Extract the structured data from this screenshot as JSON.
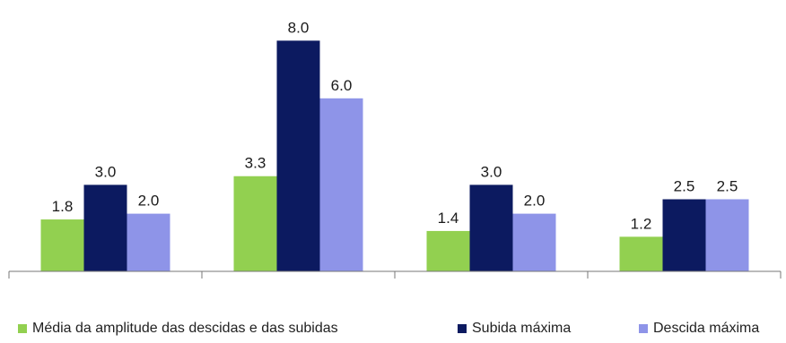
{
  "chart_data": {
    "type": "bar",
    "categories": [
      "",
      "",
      "",
      ""
    ],
    "series": [
      {
        "name": "Média da amplitude das descidas e das subidas",
        "color": "#92d050",
        "values": [
          1.8,
          3.3,
          1.4,
          1.2
        ]
      },
      {
        "name": "Subida máxima",
        "color": "#0c1a60",
        "values": [
          3.0,
          8.0,
          3.0,
          2.5
        ]
      },
      {
        "name": "Descida máxima",
        "color": "#8e94e8",
        "values": [
          2.0,
          6.0,
          2.0,
          2.5
        ]
      }
    ],
    "data_labels": [
      [
        "1.8",
        "3.3",
        "1.4",
        "1.2"
      ],
      [
        "3.0",
        "8.0",
        "3.0",
        "2.5"
      ],
      [
        "2.0",
        "6.0",
        "2.0",
        "2.5"
      ]
    ],
    "ylim": [
      0,
      9
    ],
    "grid": false,
    "legend_position": "bottom",
    "title": "",
    "xlabel": "",
    "ylabel": ""
  },
  "legend": {
    "items": [
      {
        "label": "Média da amplitude das descidas e das subidas",
        "color": "#92d050"
      },
      {
        "label": "Subida máxima",
        "color": "#0c1a60"
      },
      {
        "label": "Descida máxima",
        "color": "#8e94e8"
      }
    ]
  }
}
